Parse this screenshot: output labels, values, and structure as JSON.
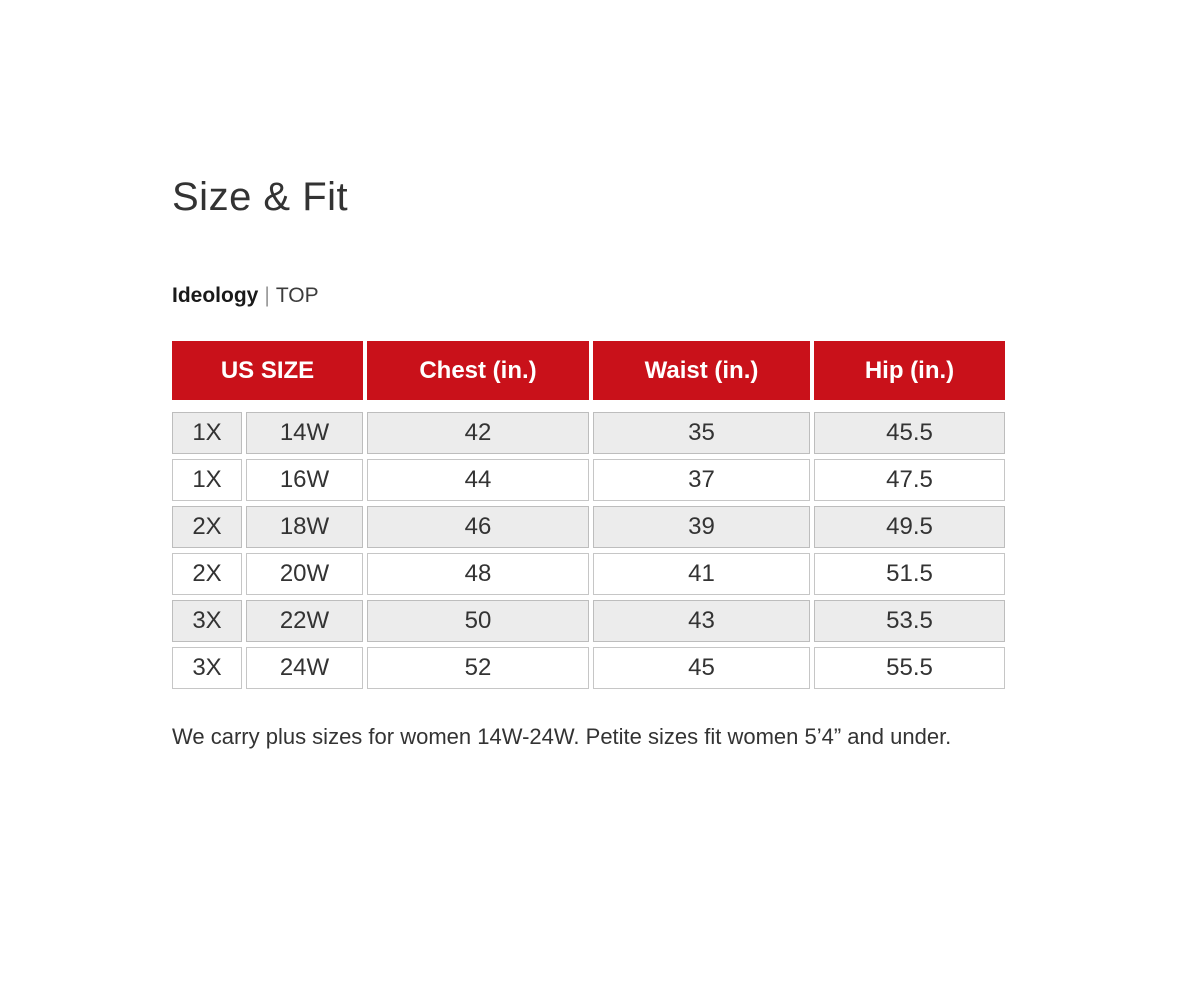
{
  "page": {
    "title": "Size & Fit",
    "brand": "Ideology",
    "separator": "|",
    "category": "TOP",
    "note": "We carry plus sizes for women 14W-24W. Petite sizes fit women 5’4” and under."
  },
  "table": {
    "headers": [
      "US SIZE",
      "Chest (in.)",
      "Waist (in.)",
      "Hip (in.)"
    ],
    "sub_columns": [
      "size_x",
      "size_w"
    ],
    "rows": [
      [
        "1X",
        "14W",
        "42",
        "35",
        "45.5"
      ],
      [
        "1X",
        "16W",
        "44",
        "37",
        "47.5"
      ],
      [
        "2X",
        "18W",
        "46",
        "39",
        "49.5"
      ],
      [
        "2X",
        "20W",
        "48",
        "41",
        "51.5"
      ],
      [
        "3X",
        "22W",
        "50",
        "43",
        "53.5"
      ],
      [
        "3X",
        "24W",
        "52",
        "45",
        "55.5"
      ]
    ]
  },
  "colors": {
    "header_red": "#c9111a",
    "header_text": "#ffffff",
    "alt_row_bg": "#ececec",
    "cell_border": "#c6c6c6",
    "body_text": "#333333"
  }
}
